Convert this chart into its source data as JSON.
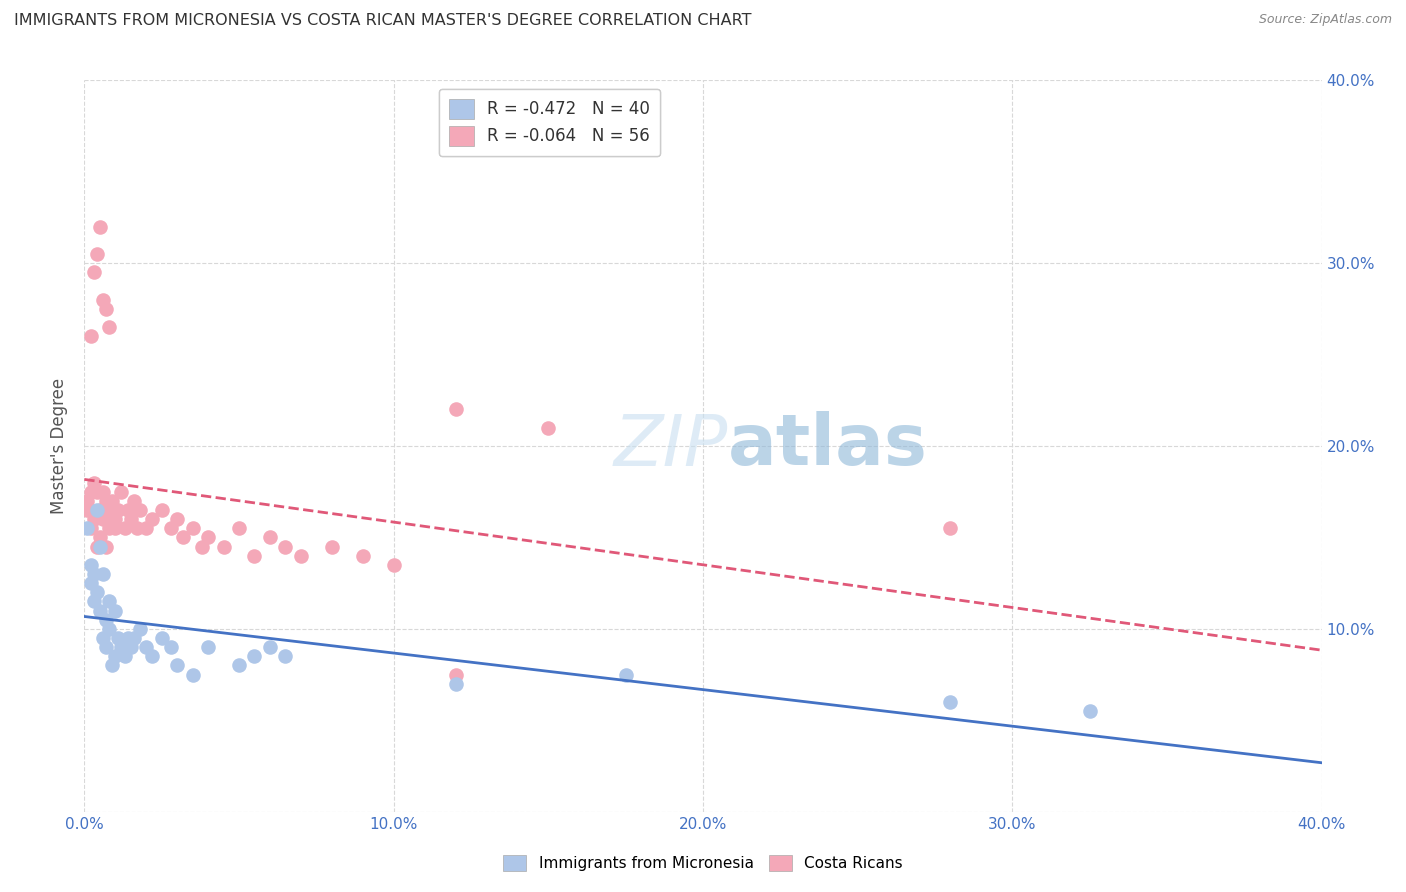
{
  "title": "IMMIGRANTS FROM MICRONESIA VS COSTA RICAN MASTER'S DEGREE CORRELATION CHART",
  "source": "Source: ZipAtlas.com",
  "ylabel": "Master's Degree",
  "xlim": [
    0.0,
    0.4
  ],
  "ylim": [
    0.0,
    0.4
  ],
  "xticks": [
    0.0,
    0.1,
    0.2,
    0.3,
    0.4
  ],
  "yticks": [
    0.0,
    0.1,
    0.2,
    0.3,
    0.4
  ],
  "xticklabels": [
    "0.0%",
    "10.0%",
    "20.0%",
    "30.0%",
    "40.0%"
  ],
  "right_yticklabels": [
    "10.0%",
    "20.0%",
    "30.0%",
    "40.0%"
  ],
  "blue_R": "-0.472",
  "blue_N": "40",
  "pink_R": "-0.064",
  "pink_N": "56",
  "blue_color": "#aec6e8",
  "pink_color": "#f4a8b8",
  "blue_line_color": "#4472c4",
  "pink_line_color": "#e05878",
  "blue_points_x": [
    0.001,
    0.002,
    0.002,
    0.003,
    0.003,
    0.004,
    0.004,
    0.005,
    0.005,
    0.006,
    0.006,
    0.007,
    0.007,
    0.008,
    0.008,
    0.009,
    0.01,
    0.01,
    0.011,
    0.012,
    0.013,
    0.014,
    0.015,
    0.016,
    0.018,
    0.02,
    0.022,
    0.025,
    0.028,
    0.03,
    0.035,
    0.04,
    0.05,
    0.055,
    0.06,
    0.065,
    0.12,
    0.175,
    0.28,
    0.325
  ],
  "blue_points_y": [
    0.155,
    0.135,
    0.125,
    0.13,
    0.115,
    0.165,
    0.12,
    0.145,
    0.11,
    0.13,
    0.095,
    0.105,
    0.09,
    0.115,
    0.1,
    0.08,
    0.11,
    0.085,
    0.095,
    0.09,
    0.085,
    0.095,
    0.09,
    0.095,
    0.1,
    0.09,
    0.085,
    0.095,
    0.09,
    0.08,
    0.075,
    0.09,
    0.08,
    0.085,
    0.09,
    0.085,
    0.07,
    0.075,
    0.06,
    0.055
  ],
  "pink_points_x": [
    0.001,
    0.001,
    0.002,
    0.002,
    0.003,
    0.003,
    0.004,
    0.004,
    0.005,
    0.005,
    0.006,
    0.006,
    0.007,
    0.007,
    0.008,
    0.008,
    0.009,
    0.01,
    0.01,
    0.011,
    0.012,
    0.013,
    0.014,
    0.015,
    0.016,
    0.017,
    0.018,
    0.02,
    0.022,
    0.025,
    0.028,
    0.03,
    0.032,
    0.035,
    0.038,
    0.04,
    0.045,
    0.05,
    0.055,
    0.06,
    0.065,
    0.07,
    0.08,
    0.09,
    0.1,
    0.002,
    0.003,
    0.004,
    0.005,
    0.006,
    0.007,
    0.008,
    0.12,
    0.15,
    0.28,
    0.12
  ],
  "pink_points_y": [
    0.17,
    0.165,
    0.175,
    0.155,
    0.18,
    0.16,
    0.175,
    0.145,
    0.165,
    0.15,
    0.175,
    0.16,
    0.17,
    0.145,
    0.165,
    0.155,
    0.17,
    0.16,
    0.155,
    0.165,
    0.175,
    0.155,
    0.165,
    0.16,
    0.17,
    0.155,
    0.165,
    0.155,
    0.16,
    0.165,
    0.155,
    0.16,
    0.15,
    0.155,
    0.145,
    0.15,
    0.145,
    0.155,
    0.14,
    0.15,
    0.145,
    0.14,
    0.145,
    0.14,
    0.135,
    0.26,
    0.295,
    0.305,
    0.32,
    0.28,
    0.275,
    0.265,
    0.22,
    0.21,
    0.155,
    0.075
  ],
  "background_color": "#ffffff",
  "grid_color": "#d8d8d8",
  "title_color": "#333333",
  "axis_label_color": "#555555",
  "right_axis_color": "#4472c4",
  "bottom_axis_color": "#4472c4",
  "watermark_color": "#c8dff0",
  "watermark_alpha": 0.6
}
